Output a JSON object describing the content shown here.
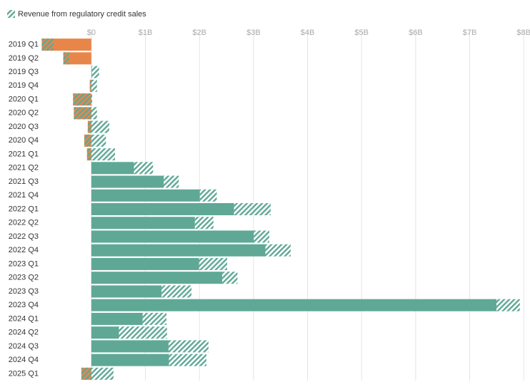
{
  "chart_data": {
    "type": "bar",
    "orientation": "horizontal",
    "categories": [
      "2019 Q1",
      "2019 Q2",
      "2019 Q3",
      "2019 Q4",
      "2020 Q1",
      "2020 Q2",
      "2020 Q3",
      "2020 Q4",
      "2021 Q1",
      "2021 Q2",
      "2021 Q3",
      "2021 Q4",
      "2022 Q1",
      "2022 Q2",
      "2022 Q3",
      "2022 Q4",
      "2023 Q1",
      "2023 Q2",
      "2023 Q3",
      "2023 Q4",
      "2024 Q1",
      "2024 Q2",
      "2024 Q3",
      "2024 Q4",
      "2025 Q1"
    ],
    "series": [
      {
        "color": "#5fa896",
        "negative_color": "#e8864a",
        "values": [
          -0.918,
          -0.519,
          0.009,
          -0.028,
          -0.338,
          -0.324,
          -0.066,
          -0.131,
          -0.08,
          0.788,
          1.339,
          2.007,
          2.639,
          1.915,
          3.006,
          3.22,
          1.992,
          2.421,
          1.299,
          7.495,
          0.948,
          0.51,
          1.428,
          1.436,
          -0.185
        ]
      },
      {
        "name": "Revenue from regulatory credit sales",
        "color": "#5fa896",
        "pattern": "hatch",
        "values": [
          0.216,
          0.111,
          0.134,
          0.133,
          0.354,
          0.428,
          0.397,
          0.401,
          0.518,
          0.354,
          0.279,
          0.314,
          0.679,
          0.344,
          0.286,
          0.467,
          0.521,
          0.282,
          0.554,
          0.433,
          0.442,
          0.89,
          0.739,
          0.692,
          0.595
        ]
      }
    ],
    "xlim": [
      -0.95,
      8.05
    ],
    "xticks": [
      {
        "value": 0,
        "label": "$0"
      },
      {
        "value": 1,
        "label": "$1B"
      },
      {
        "value": 2,
        "label": "$2B"
      },
      {
        "value": 3,
        "label": "$3B"
      },
      {
        "value": 4,
        "label": "$4B"
      },
      {
        "value": 5,
        "label": "$5B"
      },
      {
        "value": 6,
        "label": "$6B"
      },
      {
        "value": 7,
        "label": "$7B"
      },
      {
        "value": 8,
        "label": "$8B"
      }
    ],
    "grid": true,
    "legend": "top-left"
  }
}
